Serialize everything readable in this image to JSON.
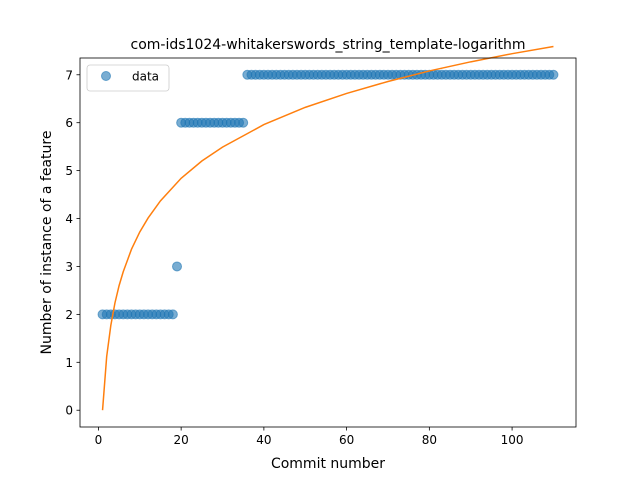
{
  "chart_data": {
    "type": "scatter",
    "title": "com-ids1024-whitakerswords_string_template-logarithm",
    "xlabel": "Commit number",
    "ylabel": "Number of instance of a feature",
    "xlim": [
      -4.45,
      115.45
    ],
    "ylim": [
      -0.35,
      7.35
    ],
    "xticks": [
      0,
      20,
      40,
      60,
      80,
      100
    ],
    "yticks": [
      0,
      1,
      2,
      3,
      4,
      5,
      6,
      7
    ],
    "grid": false,
    "legend": {
      "position": "top-left",
      "entries": [
        "data"
      ]
    },
    "series": [
      {
        "name": "data",
        "kind": "scatter",
        "color": "#1f77b4",
        "x": [
          1,
          2,
          3,
          4,
          5,
          6,
          7,
          8,
          9,
          10,
          11,
          12,
          13,
          14,
          15,
          16,
          17,
          18,
          19,
          20,
          21,
          22,
          23,
          24,
          25,
          26,
          27,
          28,
          29,
          30,
          31,
          32,
          33,
          34,
          35,
          36,
          37,
          38,
          39,
          40,
          41,
          42,
          43,
          44,
          45,
          46,
          47,
          48,
          49,
          50,
          51,
          52,
          53,
          54,
          55,
          56,
          57,
          58,
          59,
          60,
          61,
          62,
          63,
          64,
          65,
          66,
          67,
          68,
          69,
          70,
          71,
          72,
          73,
          74,
          75,
          76,
          77,
          78,
          79,
          80,
          81,
          82,
          83,
          84,
          85,
          86,
          87,
          88,
          89,
          90,
          91,
          92,
          93,
          94,
          95,
          96,
          97,
          98,
          99,
          100,
          101,
          102,
          103,
          104,
          105,
          106,
          107,
          108,
          109,
          110
        ],
        "y": [
          2,
          2,
          2,
          2,
          2,
          2,
          2,
          2,
          2,
          2,
          2,
          2,
          2,
          2,
          2,
          2,
          2,
          2,
          3,
          6,
          6,
          6,
          6,
          6,
          6,
          6,
          6,
          6,
          6,
          6,
          6,
          6,
          6,
          6,
          6,
          7,
          7,
          7,
          7,
          7,
          7,
          7,
          7,
          7,
          7,
          7,
          7,
          7,
          7,
          7,
          7,
          7,
          7,
          7,
          7,
          7,
          7,
          7,
          7,
          7,
          7,
          7,
          7,
          7,
          7,
          7,
          7,
          7,
          7,
          7,
          7,
          7,
          7,
          7,
          7,
          7,
          7,
          7,
          7,
          7,
          7,
          7,
          7,
          7,
          7,
          7,
          7,
          7,
          7,
          7,
          7,
          7,
          7,
          7,
          7,
          7,
          7,
          7,
          7,
          7,
          7,
          7,
          7,
          7,
          7,
          7,
          7,
          7,
          7,
          7
        ]
      },
      {
        "kind": "line",
        "color": "#ff7f0e",
        "x": [
          1,
          2,
          3,
          4,
          5,
          6,
          8,
          10,
          12,
          15,
          20,
          25,
          30,
          40,
          50,
          60,
          70,
          80,
          90,
          100,
          110
        ],
        "y": [
          0.0,
          1.12,
          1.77,
          2.24,
          2.6,
          2.89,
          3.36,
          3.72,
          4.01,
          4.37,
          4.84,
          5.2,
          5.49,
          5.96,
          6.32,
          6.61,
          6.86,
          7.08,
          7.27,
          7.44,
          7.59
        ]
      }
    ]
  }
}
